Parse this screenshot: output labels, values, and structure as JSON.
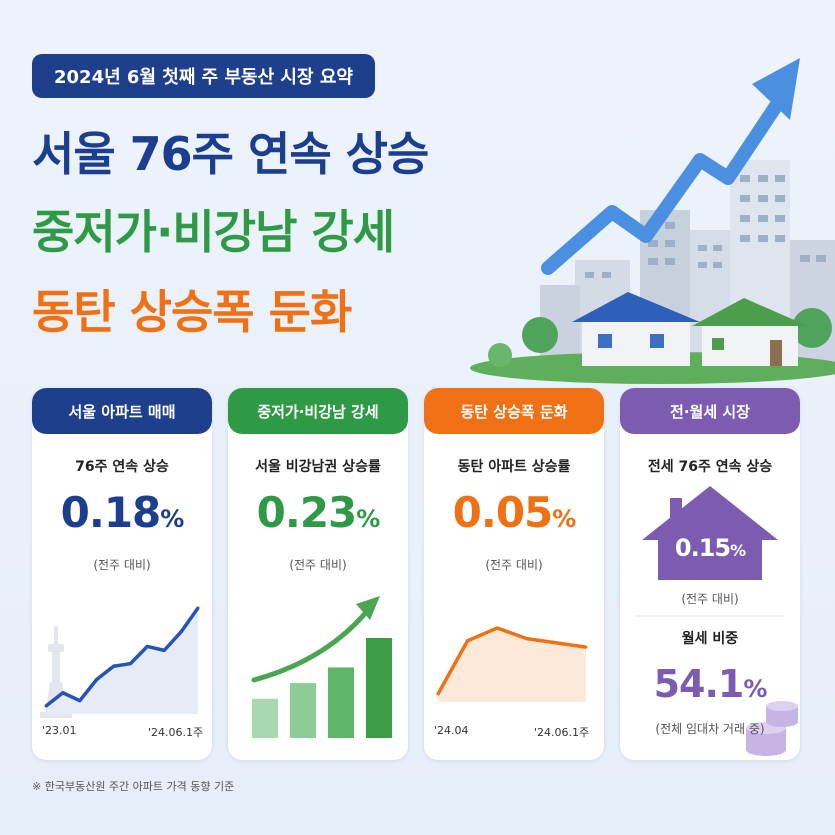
{
  "header": {
    "pill": "2024년 6월 첫째 주 부동산 시장 요약",
    "title1": "서울 76주 연속 상승",
    "title2": "중저가·비강남 강세",
    "title3": "동탄 상승폭 둔화"
  },
  "colors": {
    "blue": "#1e3f8c",
    "green": "#2e9a45",
    "orange": "#f07014",
    "purple": "#7b5cb0"
  },
  "cards": [
    {
      "header": "서울 아파트 매매",
      "subtitle": "76주 연속 상승",
      "value": "0.18",
      "unit": "%",
      "note": "(전주 대비)",
      "x_start": "'23.01",
      "x_end": "'24.06.1주",
      "icon": "namsan-tower-icon"
    },
    {
      "header": "중저가·비강남 강세",
      "subtitle": "서울 비강남권 상승률",
      "value": "0.23",
      "unit": "%",
      "note": "(전주 대비)",
      "icon": "rising-arrow-icon"
    },
    {
      "header": "동탄 상승폭 둔화",
      "subtitle": "동탄 아파트 상승률",
      "value": "0.05",
      "unit": "%",
      "note": "(전주 대비)",
      "x_start": "'24.04",
      "x_end": "'24.06.1주"
    },
    {
      "header": "전·월세 시장",
      "subtitle": "전세 76주 연속 상승",
      "value": "0.15",
      "unit": "%",
      "note": "(전주 대비)",
      "subtitle2": "월세 비중",
      "value2": "54.1",
      "unit2": "%",
      "note2": "(전체 임대차 거래 중)",
      "icon": "house-icon"
    }
  ],
  "chart_data": [
    {
      "type": "line",
      "x": [
        "'23.01",
        "",
        "",
        "",
        "",
        "",
        "",
        "",
        "",
        "'24.06.1주"
      ],
      "values": [
        1,
        2,
        1.4,
        3,
        4,
        4.2,
        5.5,
        5.2,
        6.6,
        8.4
      ]
    },
    {
      "type": "bar",
      "categories": [
        "",
        "",
        "",
        ""
      ],
      "values": [
        2,
        2.8,
        3.6,
        5.1
      ]
    },
    {
      "type": "line",
      "x": [
        "'24.04",
        "",
        "",
        "",
        "",
        "'24.06.1주"
      ],
      "values": [
        1,
        3.5,
        4.1,
        3.6,
        3.4,
        3.2
      ]
    }
  ],
  "footer": "※ 한국부동산원 주간 아파트 가격 동향 기준"
}
